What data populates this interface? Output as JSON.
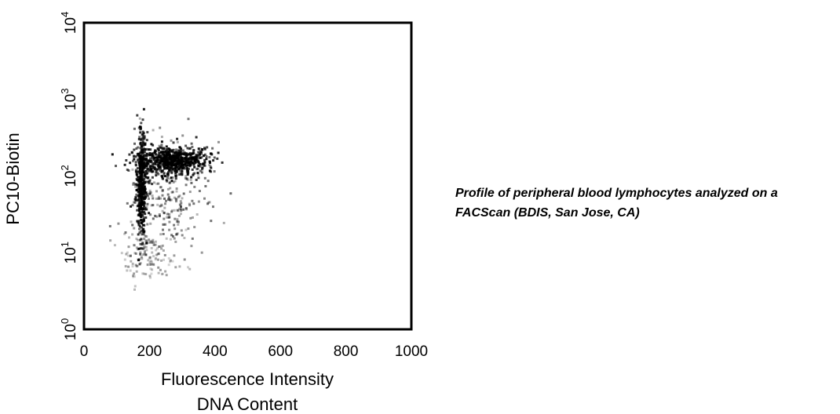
{
  "chart_data": {
    "type": "scatter",
    "title": "",
    "xlabel": [
      "Fluorescence Intensity",
      "DNA Content"
    ],
    "ylabel": "PC10-Biotin",
    "xlim": [
      0,
      1000
    ],
    "ylim": [
      1,
      10000
    ],
    "yscale": "log",
    "x_ticks": [
      "0",
      "200",
      "400",
      "600",
      "800",
      "1000"
    ],
    "y_ticks": [
      {
        "base": "10",
        "exp": "0"
      },
      {
        "base": "10",
        "exp": "1"
      },
      {
        "base": "10",
        "exp": "2"
      },
      {
        "base": "10",
        "exp": "3"
      },
      {
        "base": "10",
        "exp": "4"
      }
    ],
    "grid": false,
    "legend": "none",
    "point_color": "#000000",
    "clusters": [
      {
        "x_center": 175,
        "x_spread": 8,
        "y_log_center": 1.9,
        "y_log_spread": 0.35,
        "points": 420,
        "density": "high"
      },
      {
        "x_center": 270,
        "x_spread": 55,
        "y_log_center": 2.2,
        "y_log_spread": 0.09,
        "points": 700,
        "density": "high"
      },
      {
        "x_center": 260,
        "x_spread": 60,
        "y_log_center": 1.75,
        "y_log_spread": 0.35,
        "points": 260,
        "density": "medium"
      },
      {
        "x_center": 200,
        "x_spread": 45,
        "y_log_center": 0.95,
        "y_log_spread": 0.2,
        "points": 140,
        "density": "low"
      }
    ]
  },
  "caption": {
    "line1": "Profile of peripheral blood lymphocytes analyzed on a",
    "line2": "FACScan (BDIS, San Jose, CA)"
  }
}
